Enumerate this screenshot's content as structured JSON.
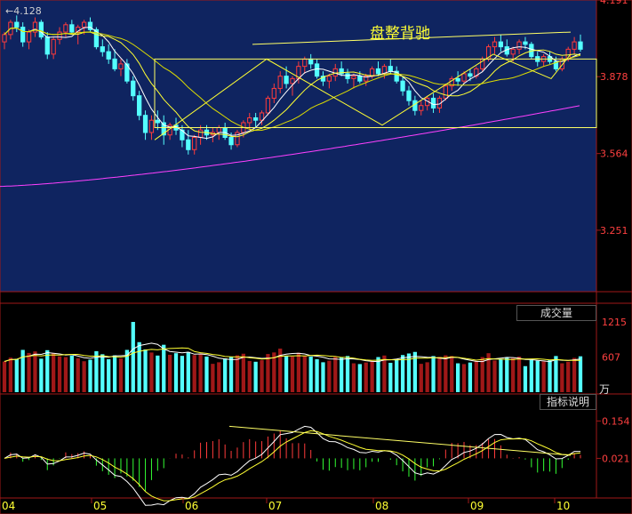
{
  "chart_data": {
    "type": "candlestick",
    "price_axis": {
      "ticks": [
        4.191,
        3.878,
        3.564,
        3.251
      ],
      "range": [
        3.0,
        4.191
      ]
    },
    "max_marker": "4.128",
    "annotation": "盘整背驰",
    "month_labels": [
      "04",
      "05",
      "06",
      "07",
      "08",
      "09",
      "10"
    ],
    "volume": {
      "title": "成交量",
      "ticks": [
        "1215",
        "607"
      ],
      "unit": "万",
      "max": 1215
    },
    "indicator": {
      "title": "指标说明",
      "ticks": [
        "0.154",
        "0.021"
      ],
      "range": [
        -0.12,
        0.19
      ]
    },
    "ohlc": [
      [
        4.02,
        4.06,
        3.99,
        4.05
      ],
      [
        4.05,
        4.11,
        4.03,
        4.1
      ],
      [
        4.1,
        4.128,
        4.06,
        4.08
      ],
      [
        4.08,
        4.1,
        4.0,
        4.02
      ],
      [
        4.02,
        4.07,
        3.99,
        4.06
      ],
      [
        4.06,
        4.12,
        4.04,
        4.1
      ],
      [
        4.1,
        4.11,
        4.03,
        4.04
      ],
      [
        4.04,
        4.06,
        3.95,
        3.97
      ],
      [
        3.97,
        4.04,
        3.95,
        4.03
      ],
      [
        4.03,
        4.08,
        4.01,
        4.06
      ],
      [
        4.06,
        4.1,
        4.04,
        4.09
      ],
      [
        4.09,
        4.11,
        4.05,
        4.06
      ],
      [
        4.06,
        4.09,
        4.01,
        4.08
      ],
      [
        4.08,
        4.11,
        4.05,
        4.1
      ],
      [
        4.1,
        4.12,
        4.06,
        4.07
      ],
      [
        4.07,
        4.08,
        3.99,
        4.0
      ],
      [
        4.0,
        4.03,
        3.96,
        3.98
      ],
      [
        3.98,
        4.01,
        3.93,
        3.95
      ],
      [
        3.95,
        3.99,
        3.9,
        3.91
      ],
      [
        3.91,
        3.95,
        3.88,
        3.93
      ],
      [
        3.93,
        3.95,
        3.85,
        3.86
      ],
      [
        3.86,
        3.88,
        3.78,
        3.8
      ],
      [
        3.8,
        3.82,
        3.7,
        3.72
      ],
      [
        3.72,
        3.74,
        3.62,
        3.65
      ],
      [
        3.65,
        3.72,
        3.62,
        3.7
      ],
      [
        3.7,
        3.74,
        3.66,
        3.69
      ],
      [
        3.69,
        3.72,
        3.6,
        3.64
      ],
      [
        3.64,
        3.69,
        3.62,
        3.68
      ],
      [
        3.68,
        3.71,
        3.64,
        3.66
      ],
      [
        3.66,
        3.68,
        3.59,
        3.62
      ],
      [
        3.62,
        3.66,
        3.56,
        3.58
      ],
      [
        3.58,
        3.64,
        3.56,
        3.63
      ],
      [
        3.63,
        3.68,
        3.6,
        3.66
      ],
      [
        3.66,
        3.68,
        3.62,
        3.64
      ],
      [
        3.64,
        3.67,
        3.61,
        3.65
      ],
      [
        3.65,
        3.68,
        3.62,
        3.67
      ],
      [
        3.67,
        3.69,
        3.62,
        3.63
      ],
      [
        3.63,
        3.65,
        3.58,
        3.6
      ],
      [
        3.6,
        3.66,
        3.59,
        3.65
      ],
      [
        3.65,
        3.7,
        3.63,
        3.69
      ],
      [
        3.69,
        3.73,
        3.66,
        3.71
      ],
      [
        3.71,
        3.73,
        3.67,
        3.7
      ],
      [
        3.7,
        3.74,
        3.68,
        3.73
      ],
      [
        3.73,
        3.8,
        3.72,
        3.79
      ],
      [
        3.79,
        3.85,
        3.77,
        3.83
      ],
      [
        3.83,
        3.9,
        3.81,
        3.88
      ],
      [
        3.88,
        3.92,
        3.83,
        3.85
      ],
      [
        3.85,
        3.88,
        3.8,
        3.87
      ],
      [
        3.87,
        3.94,
        3.85,
        3.92
      ],
      [
        3.92,
        3.96,
        3.89,
        3.95
      ],
      [
        3.95,
        3.97,
        3.91,
        3.93
      ],
      [
        3.93,
        3.95,
        3.87,
        3.88
      ],
      [
        3.88,
        3.9,
        3.84,
        3.86
      ],
      [
        3.86,
        3.89,
        3.83,
        3.88
      ],
      [
        3.88,
        3.93,
        3.86,
        3.91
      ],
      [
        3.91,
        3.94,
        3.88,
        3.89
      ],
      [
        3.89,
        3.91,
        3.85,
        3.87
      ],
      [
        3.87,
        3.89,
        3.83,
        3.88
      ],
      [
        3.88,
        3.9,
        3.85,
        3.86
      ],
      [
        3.86,
        3.89,
        3.84,
        3.88
      ],
      [
        3.88,
        3.92,
        3.87,
        3.91
      ],
      [
        3.91,
        3.94,
        3.88,
        3.89
      ],
      [
        3.89,
        3.93,
        3.87,
        3.92
      ],
      [
        3.92,
        3.95,
        3.89,
        3.9
      ],
      [
        3.9,
        3.92,
        3.85,
        3.86
      ],
      [
        3.86,
        3.88,
        3.8,
        3.82
      ],
      [
        3.82,
        3.84,
        3.76,
        3.78
      ],
      [
        3.78,
        3.8,
        3.72,
        3.74
      ],
      [
        3.74,
        3.78,
        3.72,
        3.76
      ],
      [
        3.76,
        3.8,
        3.74,
        3.79
      ],
      [
        3.79,
        3.81,
        3.73,
        3.75
      ],
      [
        3.75,
        3.8,
        3.73,
        3.79
      ],
      [
        3.79,
        3.85,
        3.78,
        3.84
      ],
      [
        3.84,
        3.88,
        3.82,
        3.87
      ],
      [
        3.87,
        3.9,
        3.84,
        3.86
      ],
      [
        3.86,
        3.9,
        3.85,
        3.89
      ],
      [
        3.89,
        3.91,
        3.86,
        3.88
      ],
      [
        3.88,
        3.92,
        3.87,
        3.91
      ],
      [
        3.91,
        3.96,
        3.9,
        3.95
      ],
      [
        3.95,
        4.01,
        3.94,
        4.0
      ],
      [
        4.0,
        4.04,
        3.97,
        4.02
      ],
      [
        4.02,
        4.05,
        3.98,
        4.0
      ],
      [
        4.0,
        4.03,
        3.96,
        3.97
      ],
      [
        3.97,
        4.0,
        3.94,
        3.99
      ],
      [
        3.99,
        4.03,
        3.97,
        4.02
      ],
      [
        4.02,
        4.04,
        3.99,
        4.01
      ],
      [
        4.01,
        4.02,
        3.95,
        3.96
      ],
      [
        3.96,
        3.98,
        3.92,
        3.94
      ],
      [
        3.94,
        3.97,
        3.92,
        3.96
      ],
      [
        3.96,
        3.98,
        3.93,
        3.94
      ],
      [
        3.94,
        3.96,
        3.9,
        3.91
      ],
      [
        3.91,
        3.96,
        3.9,
        3.95
      ],
      [
        3.95,
        4.0,
        3.94,
        3.99
      ],
      [
        3.99,
        4.04,
        3.97,
        4.02
      ],
      [
        4.02,
        4.05,
        3.98,
        3.99
      ]
    ]
  }
}
